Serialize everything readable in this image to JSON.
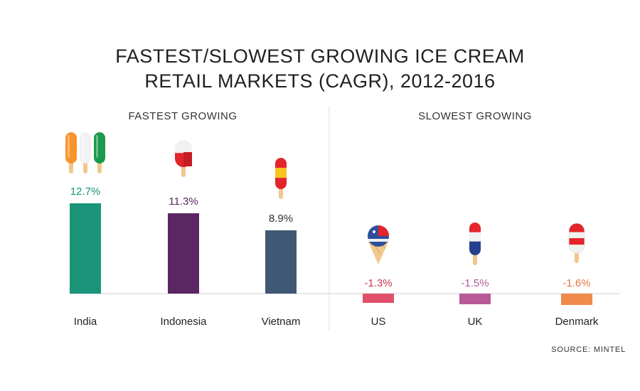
{
  "header": {
    "title_line1": "FASTEST/SLOWEST GROWING ICE CREAM",
    "title_line2": "RETAIL MARKETS (CAGR), 2012-2016"
  },
  "footer": {
    "source": "SOURCE: MINTEL"
  },
  "chart_data": {
    "type": "bar",
    "title": "FASTEST/SLOWEST GROWING ICE CREAM RETAIL MARKETS (CAGR), 2012-2016",
    "groups": [
      {
        "label": "FASTEST GROWING",
        "categories": [
          "India",
          "Indonesia",
          "Vietnam"
        ]
      },
      {
        "label": "SLOWEST GROWING",
        "categories": [
          "US",
          "UK",
          "Denmark"
        ]
      }
    ],
    "categories": [
      "India",
      "Indonesia",
      "Vietnam",
      "US",
      "UK",
      "Denmark"
    ],
    "values": [
      12.7,
      11.3,
      8.9,
      -1.3,
      -1.5,
      -1.6
    ],
    "value_labels": [
      "12.7%",
      "11.3%",
      "8.9%",
      "-1.3%",
      "-1.5%",
      "-1.6%"
    ],
    "colors": [
      "#1a9579",
      "#5a2762",
      "#3f5873",
      "#e0506a",
      "#b85a97",
      "#f08a4b"
    ],
    "label_colors": [
      "#1a9579",
      "#5a2762",
      "#333333",
      "#c23a52",
      "#b85a97",
      "#e0784a"
    ],
    "icons": [
      "tricolor-popsicles-icon",
      "red-white-popsicle-icon",
      "red-yellow-popsicle-icon",
      "ice-cream-cone-icon",
      "red-white-blue-popsicle-icon",
      "red-white-striped-popsicle-icon"
    ],
    "xlabel": "",
    "ylabel": "",
    "ylim": [
      -2,
      14
    ],
    "grid": false
  }
}
